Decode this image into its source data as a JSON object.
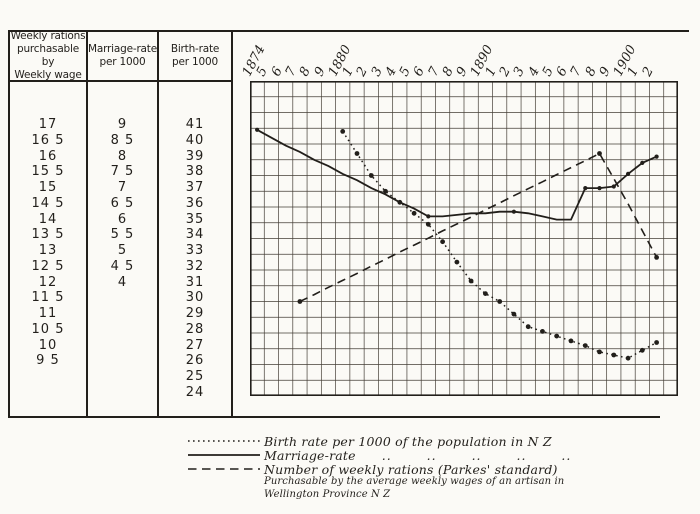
{
  "table": {
    "columns": [
      {
        "header_lines": [
          "Weekly rations",
          "purchasable by",
          "Weekly wage"
        ],
        "values": [
          "17",
          "16 5",
          "16",
          "15 5",
          "15",
          "14 5",
          "14",
          "13 5",
          "13",
          "12 5",
          "12",
          "11 5",
          "11",
          "10 5",
          "10",
          "9 5"
        ]
      },
      {
        "header_lines": [
          "Marriage-rate",
          "per 1000"
        ],
        "values": [
          "9",
          "8 5",
          "8",
          "7 5",
          "7",
          "6 5",
          "6",
          "5 5",
          "5",
          "4 5",
          "4"
        ]
      },
      {
        "header_lines": [
          "Birth-rate",
          "per 1000"
        ],
        "values": [
          "41",
          "40",
          "39",
          "38",
          "37",
          "36",
          "35",
          "34",
          "33",
          "32",
          "31",
          "30",
          "29",
          "28",
          "27",
          "26",
          "25",
          "24"
        ]
      }
    ]
  },
  "chart_data": {
    "type": "line",
    "title": "",
    "x_labels": [
      "1874",
      "5",
      "6",
      "7",
      "8",
      "9",
      "1880",
      "1",
      "2",
      "3",
      "4",
      "5",
      "6",
      "7",
      "8",
      "9",
      "1890",
      "1",
      "2",
      "3",
      "4",
      "5",
      "6",
      "7",
      "8",
      "9",
      "1900",
      "1",
      "2"
    ],
    "x_range": [
      1874,
      1902
    ],
    "grid": {
      "cols": 30,
      "rows": 20,
      "on": true
    },
    "axis_note": "three vertical scales share grid rows: rations 17-9.5, marriage 9-4, births 41-24",
    "series": [
      {
        "name": "Birth rate per 1000 of the population in N Z",
        "style": "dotted",
        "start_year": 1880,
        "scale": {
          "top_value": 41,
          "per_row": 1
        },
        "values": [
          40.8,
          39.4,
          38.0,
          37.0,
          36.3,
          35.6,
          34.9,
          33.8,
          32.5,
          31.3,
          30.5,
          30.0,
          29.2,
          28.4,
          28.1,
          27.8,
          27.5,
          27.2,
          26.8,
          26.6,
          26.4,
          26.9,
          27.4
        ],
        "marker_years": "all"
      },
      {
        "name": "Marriage-rate per 1000",
        "style": "solid",
        "start_year": 1874,
        "scale": {
          "top_value": 9,
          "per_row": 0.5
        },
        "values": [
          8.95,
          8.7,
          8.45,
          8.25,
          8.0,
          7.8,
          7.55,
          7.35,
          7.1,
          6.9,
          6.65,
          6.45,
          6.2,
          6.2,
          6.25,
          6.3,
          6.3,
          6.35,
          6.35,
          6.3,
          6.2,
          6.1,
          6.1,
          7.1,
          7.1,
          7.15,
          7.55,
          7.9,
          8.1
        ],
        "marker_years": [
          1874,
          1886,
          1892,
          1897,
          1898,
          1899,
          1900,
          1901,
          1902
        ]
      },
      {
        "name": "Number of weekly rations (Parkes' standard)",
        "style": "dashed",
        "start_year": 1877,
        "scale": {
          "top_value": 17,
          "per_row": 0.5
        },
        "values": [
          11.5,
          11.72,
          11.95,
          12.17,
          12.39,
          12.62,
          12.84,
          13.07,
          13.29,
          13.51,
          13.74,
          13.96,
          14.18,
          14.41,
          14.63,
          14.86,
          15.08,
          15.3,
          15.53,
          15.75,
          15.97,
          16.2,
          15.4,
          14.6,
          13.75,
          12.9
        ],
        "marker_years": [
          1877,
          1898,
          1902
        ]
      }
    ]
  },
  "legend": {
    "items": [
      {
        "style": "dotted",
        "label": "Birth rate per 1000 of the population in N Z",
        "ditto_marks": ""
      },
      {
        "style": "solid",
        "label": "Marriage-rate",
        "ditto_marks": ".. .. .. .. .."
      },
      {
        "style": "dashed",
        "label": "Number of weekly rations (Parkes' standard)",
        "ditto_marks": ""
      }
    ],
    "footnote_lines": [
      "Purchasable by the average weekly wages of an artisan in",
      "Wellington Province N Z"
    ]
  }
}
